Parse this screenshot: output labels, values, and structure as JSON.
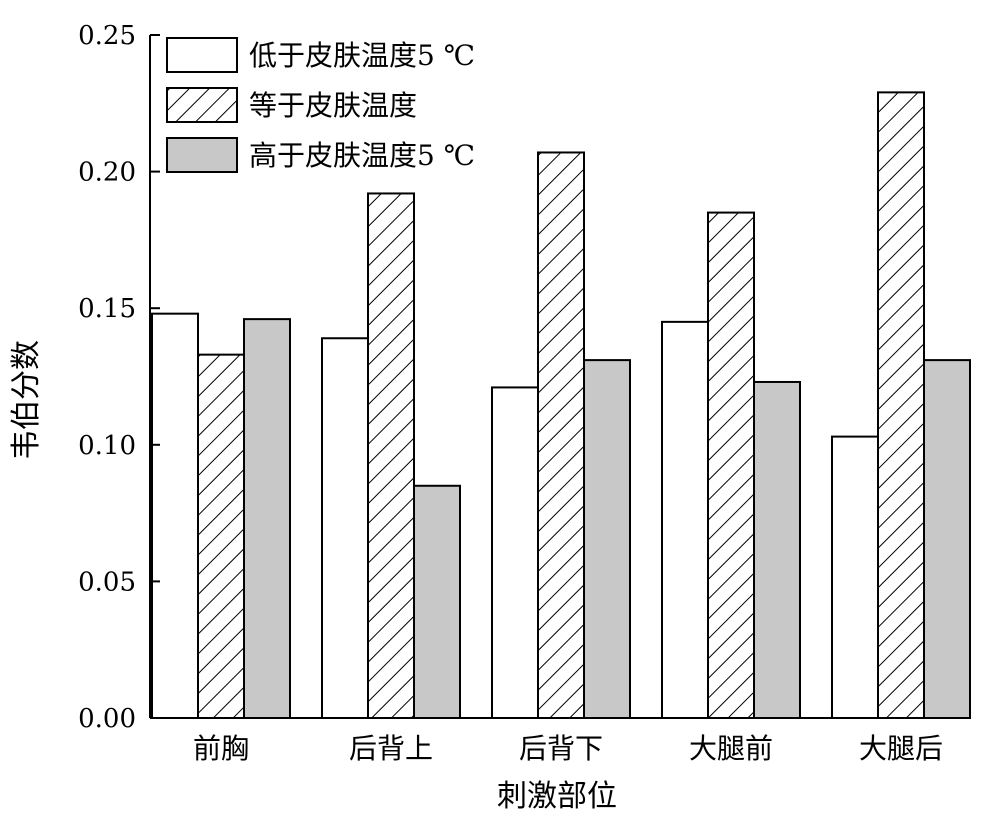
{
  "chart_data": {
    "type": "bar",
    "categories": [
      "前胸",
      "后背上",
      "后背下",
      "大腿前",
      "大腿后"
    ],
    "series": [
      {
        "name": "低于皮肤温度5 ℃",
        "values": [
          0.148,
          0.139,
          0.121,
          0.145,
          0.103
        ],
        "fill": "#ffffff",
        "pattern": "none"
      },
      {
        "name": "等于皮肤温度",
        "values": [
          0.133,
          0.192,
          0.207,
          0.185,
          0.229
        ],
        "fill": "#ffffff",
        "pattern": "diagonal-hatch"
      },
      {
        "name": "高于皮肤温度5 ℃",
        "values": [
          0.146,
          0.085,
          0.131,
          0.123,
          0.131
        ],
        "fill": "#c8c8c8",
        "pattern": "none"
      }
    ],
    "title": "",
    "xlabel": "刺激部位",
    "ylabel": "韦伯分数",
    "ylim": [
      0,
      0.25
    ],
    "yticks": [
      "0.00",
      "0.05",
      "0.10",
      "0.15",
      "0.20",
      "0.25"
    ],
    "grid": false,
    "legend_position": "top-left"
  }
}
